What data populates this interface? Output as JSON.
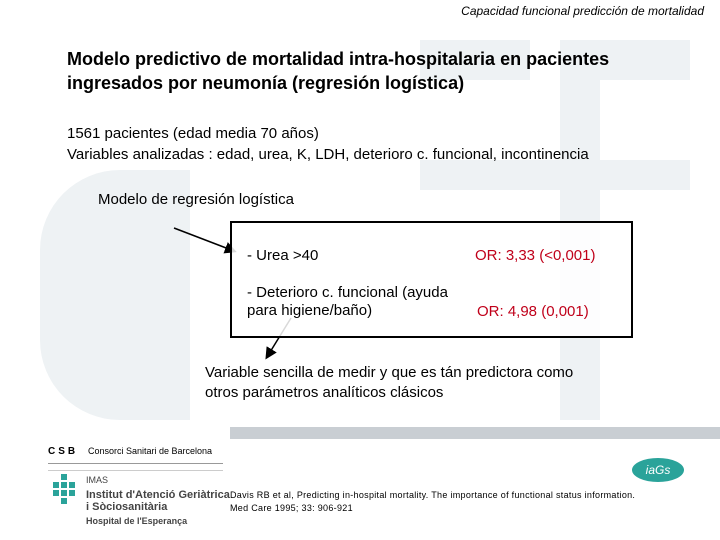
{
  "header": {
    "title": "Capacidad funcional predicción de mortalidad"
  },
  "main": {
    "title": "Modelo predictivo de mortalidad intra-hospitalaria en pacientes ingresados por neumonía (regresión logística)",
    "patients": "1561 pacientes (edad media 70 años)",
    "variables": "Variables analizadas : edad, urea, K, LDH, deterioro c. funcional, incontinencia",
    "model_label": "Modelo de regresión logística",
    "results": [
      {
        "variable": "- Urea >40",
        "or": "OR: 3,33 (<0,001)"
      },
      {
        "variable": "- Deterioro c. funcional (ayuda para higiene/baño)",
        "or": "OR: 4,98 (0,001)"
      }
    ],
    "conclusion": "Variable sencilla de medir y que es tán predictora como otros parámetros analíticos clásicos"
  },
  "footer": {
    "csb": "CSB",
    "consorci": "Consorci Sanitari de Barcelona",
    "imas": "IMAS",
    "institute_line1": "Institut d'Atenció Geriàtrica",
    "institute_line2": "i Sòciosanitària",
    "hospital": "Hospital de l'Esperança",
    "reference_line1": "Davis RB et al, Predicting in-hospital mortality. The importance of functional status information.",
    "reference_line2": "Med Care 1995; 33: 906-921",
    "iags_logo": "iaGs"
  },
  "colors": {
    "or_text": "#c0001a",
    "logo_teal": "#2aa39a",
    "background_shape": "#eef2f4"
  }
}
